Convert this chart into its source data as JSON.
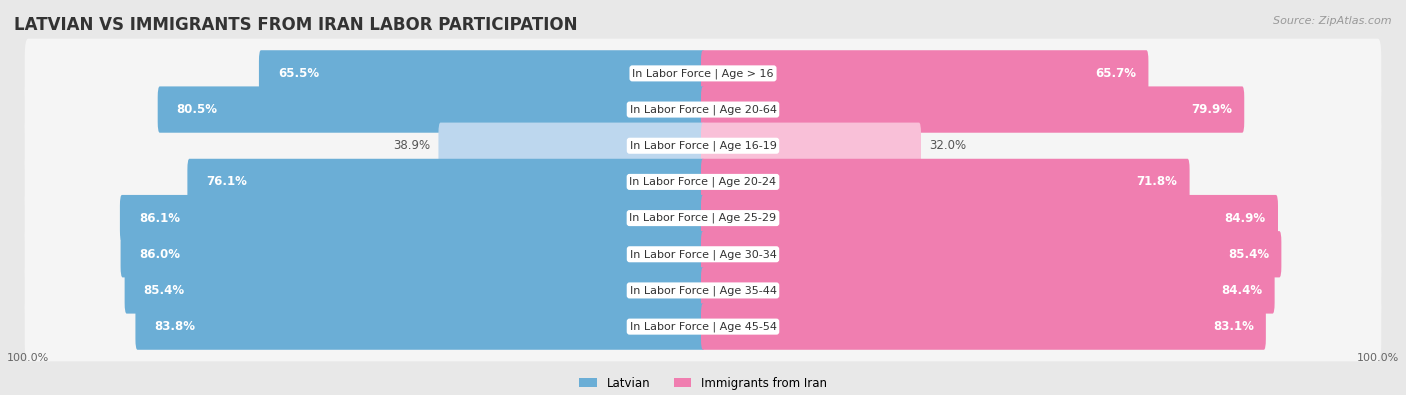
{
  "title": "LATVIAN VS IMMIGRANTS FROM IRAN LABOR PARTICIPATION",
  "source": "Source: ZipAtlas.com",
  "categories": [
    "In Labor Force | Age > 16",
    "In Labor Force | Age 20-64",
    "In Labor Force | Age 16-19",
    "In Labor Force | Age 20-24",
    "In Labor Force | Age 25-29",
    "In Labor Force | Age 30-34",
    "In Labor Force | Age 35-44",
    "In Labor Force | Age 45-54"
  ],
  "latvian_values": [
    65.5,
    80.5,
    38.9,
    76.1,
    86.1,
    86.0,
    85.4,
    83.8
  ],
  "iran_values": [
    65.7,
    79.9,
    32.0,
    71.8,
    84.9,
    85.4,
    84.4,
    83.1
  ],
  "latvian_color": "#6BAED6",
  "latvian_color_light": "#BDD7EE",
  "iran_color": "#F07EB0",
  "iran_color_light": "#F9C0D8",
  "max_val": 100.0,
  "bg_color": "#e8e8e8",
  "row_bg_color": "#f5f5f5",
  "legend_latvian": "Latvian",
  "legend_iran": "Immigrants from Iran",
  "title_fontsize": 12,
  "label_fontsize": 8.5,
  "cat_fontsize": 8,
  "tick_fontsize": 8,
  "source_fontsize": 8
}
